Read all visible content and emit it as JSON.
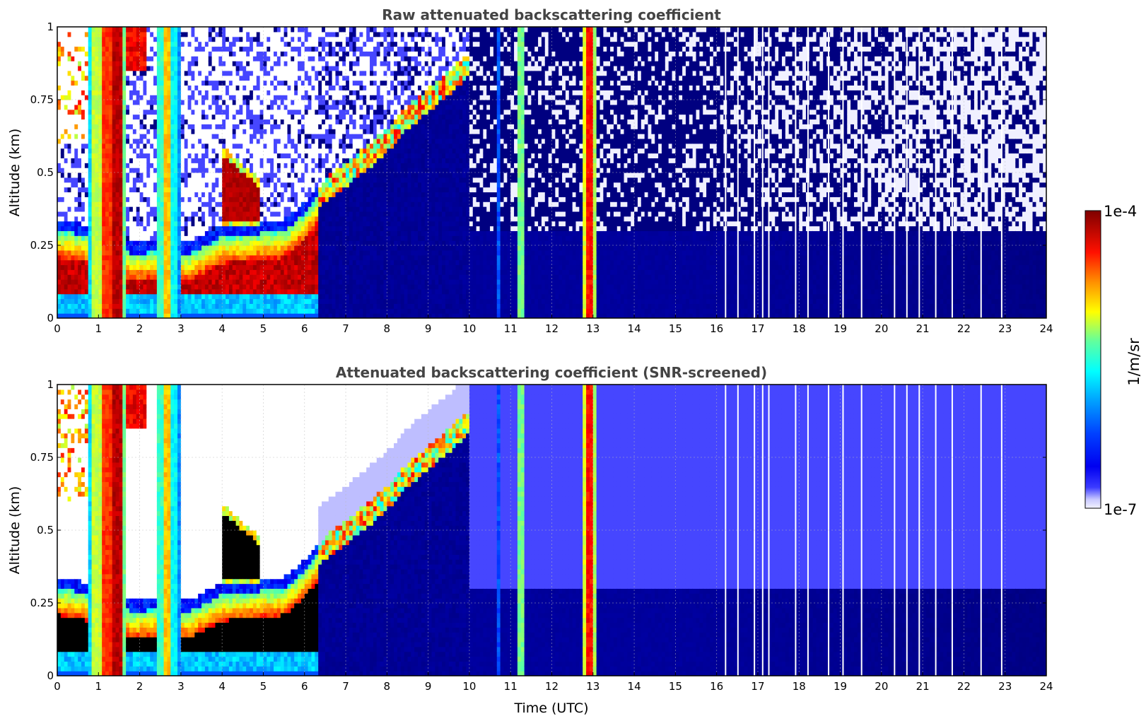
{
  "chart_data": [
    {
      "type": "heatmap",
      "title": "Raw attenuated backscattering coefficient",
      "xlabel": "",
      "ylabel": "Altitude (km)",
      "xlim": [
        0,
        24
      ],
      "ylim": [
        0,
        1
      ],
      "xticks": [
        "0",
        "1",
        "2",
        "3",
        "4",
        "5",
        "6",
        "7",
        "8",
        "9",
        "10",
        "11",
        "12",
        "13",
        "14",
        "15",
        "16",
        "17",
        "18",
        "19",
        "20",
        "21",
        "22",
        "23",
        "24"
      ],
      "yticks": [
        "0",
        "0.25",
        "0.5",
        "0.75",
        "1"
      ],
      "grid": true,
      "screened": false
    },
    {
      "type": "heatmap",
      "title": "Attenuated backscattering coefficient (SNR-screened)",
      "xlabel": "Time (UTC)",
      "ylabel": "Altitude (km)",
      "xlim": [
        0,
        24
      ],
      "ylim": [
        0,
        1
      ],
      "xticks": [
        "0",
        "1",
        "2",
        "3",
        "4",
        "5",
        "6",
        "7",
        "8",
        "9",
        "10",
        "11",
        "12",
        "13",
        "14",
        "15",
        "16",
        "17",
        "18",
        "19",
        "20",
        "21",
        "22",
        "23",
        "24"
      ],
      "yticks": [
        "0",
        "0.25",
        "0.5",
        "0.75",
        "1"
      ],
      "grid": true,
      "screened": true
    }
  ],
  "colorbar": {
    "label": "1/m/sr",
    "max_label": "1e-4",
    "min_label": "1e-7",
    "colormap": "jet",
    "range": [
      1e-07,
      0.0001
    ]
  },
  "features": {
    "vertical_plumes": [
      {
        "t0": 0.75,
        "t1": 0.85,
        "level": 0.42
      },
      {
        "t0": 0.85,
        "t1": 1.05,
        "level": 0.62
      },
      {
        "t0": 1.05,
        "t1": 1.3,
        "level": 0.85
      },
      {
        "t0": 1.3,
        "t1": 1.55,
        "level": 0.95
      },
      {
        "t0": 1.55,
        "t1": 1.65,
        "level": 0.55
      },
      {
        "t0": 2.45,
        "t1": 2.6,
        "level": 0.5
      },
      {
        "t0": 2.6,
        "t1": 2.75,
        "level": 0.72
      },
      {
        "t0": 2.75,
        "t1": 2.9,
        "level": 0.45
      },
      {
        "t0": 2.9,
        "t1": 3.0,
        "level": 0.35
      },
      {
        "t0": 10.65,
        "t1": 10.72,
        "level": 0.3
      },
      {
        "t0": 11.15,
        "t1": 11.3,
        "level": 0.55
      },
      {
        "t0": 11.3,
        "t1": 11.35,
        "level": 0.35
      },
      {
        "t0": 12.05,
        "t1": 12.1,
        "level": 0.28
      },
      {
        "t0": 12.75,
        "t1": 12.85,
        "level": 0.65
      },
      {
        "t0": 12.85,
        "t1": 12.97,
        "level": 0.88
      },
      {
        "t0": 12.97,
        "t1": 13.05,
        "level": 0.6
      },
      {
        "t0": 13.05,
        "t1": 13.12,
        "level": 0.35
      }
    ],
    "aerosol_layer_top_km": [
      [
        0,
        0.3
      ],
      [
        0.5,
        0.29
      ],
      [
        1,
        0.27
      ],
      [
        1.8,
        0.22
      ],
      [
        2.5,
        0.23
      ],
      [
        3.2,
        0.22
      ],
      [
        4,
        0.28
      ],
      [
        4.8,
        0.29
      ],
      [
        5.5,
        0.3
      ],
      [
        6,
        0.36
      ],
      [
        6.5,
        0.45
      ],
      [
        7,
        0.5
      ],
      [
        7.5,
        0.56
      ],
      [
        8,
        0.62
      ],
      [
        8.5,
        0.7
      ],
      [
        9,
        0.76
      ],
      [
        9.5,
        0.82
      ],
      [
        10,
        0.88
      ]
    ],
    "elevated_layer": {
      "t0": 4.0,
      "t1": 4.9,
      "top_km": 0.56,
      "bottom_km": 0.34
    }
  }
}
